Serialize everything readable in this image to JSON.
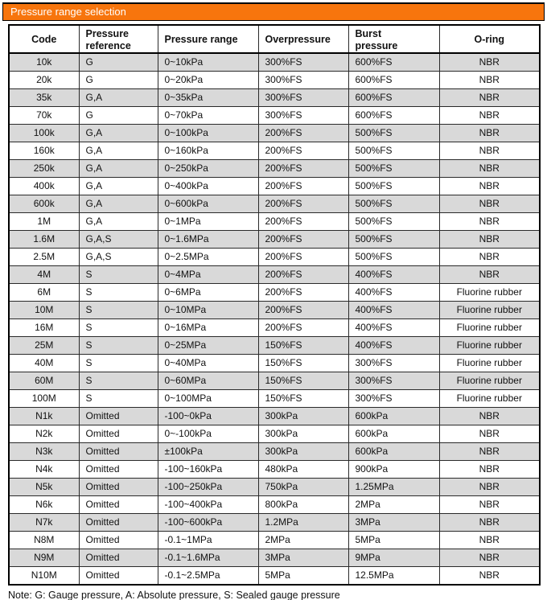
{
  "colors": {
    "accent_orange": "#F7750D",
    "stripe_gray": "#D9D9D9",
    "title_text": "#FFFFFF",
    "border": "#000000"
  },
  "section_header": {
    "title": "Pressure range selection"
  },
  "table": {
    "columns": [
      "Code",
      "Pressure\nreference",
      "Pressure range",
      "Overpressure",
      "Burst\npressure",
      "O-ring"
    ],
    "rows": [
      [
        "10k",
        "G",
        "0~10kPa",
        "300%FS",
        "600%FS",
        "NBR"
      ],
      [
        "20k",
        "G",
        "0~20kPa",
        "300%FS",
        "600%FS",
        "NBR"
      ],
      [
        "35k",
        "G,A",
        "0~35kPa",
        "300%FS",
        "600%FS",
        "NBR"
      ],
      [
        "70k",
        "G",
        "0~70kPa",
        "300%FS",
        "600%FS",
        "NBR"
      ],
      [
        "100k",
        "G,A",
        "0~100kPa",
        "200%FS",
        "500%FS",
        "NBR"
      ],
      [
        "160k",
        "G,A",
        "0~160kPa",
        "200%FS",
        "500%FS",
        "NBR"
      ],
      [
        "250k",
        "G,A",
        "0~250kPa",
        "200%FS",
        "500%FS",
        "NBR"
      ],
      [
        "400k",
        "G,A",
        "0~400kPa",
        "200%FS",
        "500%FS",
        "NBR"
      ],
      [
        "600k",
        "G,A",
        "0~600kPa",
        "200%FS",
        "500%FS",
        "NBR"
      ],
      [
        "1M",
        "G,A",
        "0~1MPa",
        "200%FS",
        "500%FS",
        "NBR"
      ],
      [
        "1.6M",
        "G,A,S",
        "0~1.6MPa",
        "200%FS",
        "500%FS",
        "NBR"
      ],
      [
        "2.5M",
        "G,A,S",
        "0~2.5MPa",
        "200%FS",
        "500%FS",
        "NBR"
      ],
      [
        "4M",
        "S",
        "0~4MPa",
        "200%FS",
        "400%FS",
        "NBR"
      ],
      [
        "6M",
        "S",
        "0~6MPa",
        "200%FS",
        "400%FS",
        "Fluorine rubber"
      ],
      [
        "10M",
        "S",
        "0~10MPa",
        "200%FS",
        "400%FS",
        "Fluorine rubber"
      ],
      [
        "16M",
        "S",
        "0~16MPa",
        "200%FS",
        "400%FS",
        "Fluorine rubber"
      ],
      [
        "25M",
        "S",
        "0~25MPa",
        "150%FS",
        "400%FS",
        "Fluorine rubber"
      ],
      [
        "40M",
        "S",
        "0~40MPa",
        "150%FS",
        "300%FS",
        "Fluorine rubber"
      ],
      [
        "60M",
        "S",
        "0~60MPa",
        "150%FS",
        "300%FS",
        "Fluorine rubber"
      ],
      [
        "100M",
        "S",
        "0~100MPa",
        "150%FS",
        "300%FS",
        "Fluorine rubber"
      ],
      [
        "N1k",
        "Omitted",
        "-100~0kPa",
        "300kPa",
        "600kPa",
        "NBR"
      ],
      [
        "N2k",
        "Omitted",
        "0~-100kPa",
        "300kPa",
        "600kPa",
        "NBR"
      ],
      [
        "N3k",
        "Omitted",
        "±100kPa",
        "300kPa",
        "600kPa",
        "NBR"
      ],
      [
        "N4k",
        "Omitted",
        "-100~160kPa",
        "480kPa",
        "900kPa",
        "NBR"
      ],
      [
        "N5k",
        "Omitted",
        "-100~250kPa",
        "750kPa",
        "1.25MPa",
        "NBR"
      ],
      [
        "N6k",
        "Omitted",
        "-100~400kPa",
        "800kPa",
        "2MPa",
        "NBR"
      ],
      [
        "N7k",
        "Omitted",
        "-100~600kPa",
        "1.2MPa",
        "3MPa",
        "NBR"
      ],
      [
        "N8M",
        "Omitted",
        "-0.1~1MPa",
        "2MPa",
        "5MPa",
        "NBR"
      ],
      [
        "N9M",
        "Omitted",
        "-0.1~1.6MPa",
        "3MPa",
        "9MPa",
        "NBR"
      ],
      [
        "N10M",
        "Omitted",
        "-0.1~2.5MPa",
        "5MPa",
        "12.5MPa",
        "NBR"
      ]
    ]
  },
  "note": "Note: G: Gauge pressure, A: Absolute pressure, S: Sealed gauge pressure"
}
